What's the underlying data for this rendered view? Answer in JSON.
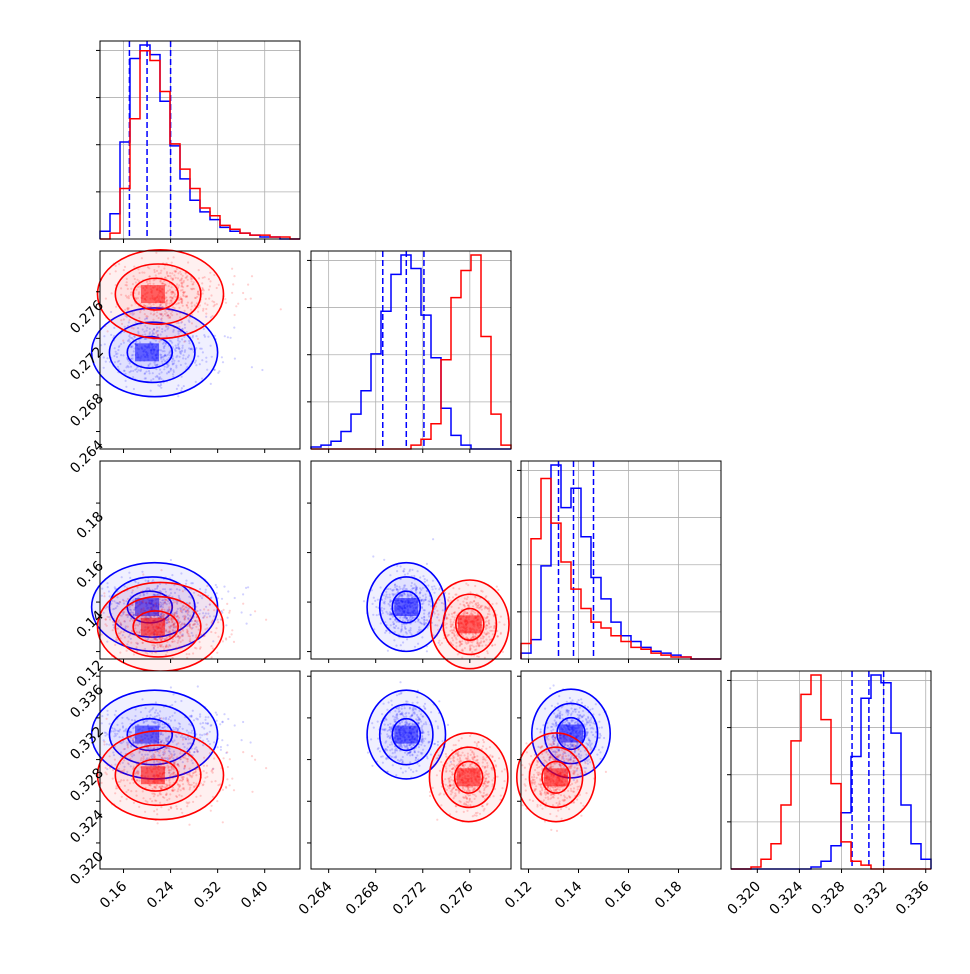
{
  "chart_data": {
    "type": "corner",
    "grid": true,
    "colors": {
      "series_a": "#0000ff",
      "series_b": "#ff0000",
      "grid": "#b0b0b0"
    },
    "parameters": [
      {
        "range": [
          0.12,
          0.46
        ],
        "ticks": [
          0.16,
          0.24,
          0.32,
          0.4
        ],
        "tick_labels": [
          "0.16",
          "0.24",
          "0.32",
          "0.40"
        ]
      },
      {
        "range": [
          0.2625,
          0.2795
        ],
        "ticks": [
          0.264,
          0.268,
          0.272,
          0.276
        ],
        "tick_labels": [
          "0.264",
          "0.268",
          "0.272",
          "0.276"
        ]
      },
      {
        "range": [
          0.117,
          0.197
        ],
        "ticks": [
          0.12,
          0.14,
          0.16,
          0.18
        ],
        "tick_labels": [
          "0.12",
          "0.14",
          "0.16",
          "0.18"
        ]
      },
      {
        "range": [
          0.3175,
          0.3365
        ],
        "ticks": [
          0.32,
          0.324,
          0.328,
          0.332,
          0.336
        ],
        "tick_labels": [
          "0.320",
          "0.324",
          "0.328",
          "0.332",
          "0.336"
        ]
      }
    ],
    "series": [
      {
        "color": "series_a",
        "quantiles": [
          [
            0.17,
            0.2,
            0.24
          ],
          [
            0.2686,
            0.2706,
            0.2721
          ],
          [
            0.132,
            0.138,
            0.146
          ],
          [
            0.329,
            0.3306,
            0.332
          ]
        ],
        "histograms": [
          [
            0.04,
            0.13,
            0.5,
            0.93,
            1.0,
            0.95,
            0.71,
            0.48,
            0.31,
            0.2,
            0.14,
            0.1,
            0.06,
            0.04,
            0.03,
            0.02,
            0.01,
            0.01,
            0.0,
            0.0
          ],
          [
            0.01,
            0.02,
            0.04,
            0.09,
            0.18,
            0.3,
            0.49,
            0.71,
            0.9,
            1.0,
            0.93,
            0.69,
            0.47,
            0.21,
            0.07,
            0.02,
            0.0,
            0.0,
            0.0,
            0.0
          ],
          [
            0.03,
            0.1,
            0.48,
            1.0,
            0.78,
            0.88,
            0.63,
            0.42,
            0.31,
            0.19,
            0.12,
            0.09,
            0.06,
            0.04,
            0.03,
            0.02,
            0.01,
            0.0,
            0.0,
            0.0
          ],
          [
            0.0,
            0.0,
            0.0,
            0.0,
            0.0,
            0.0,
            0.0,
            0.0,
            0.01,
            0.04,
            0.12,
            0.29,
            0.58,
            0.88,
            1.0,
            0.96,
            0.7,
            0.33,
            0.13,
            0.05
          ]
        ],
        "centers": [
          [
            0.2,
            0.2708
          ],
          [
            0.2,
            0.138
          ],
          [
            0.2706,
            0.138
          ],
          [
            0.2,
            0.3304
          ],
          [
            0.2706,
            0.3304
          ],
          [
            0.137,
            0.3305
          ]
        ]
      },
      {
        "color": "series_b",
        "quantiles": [],
        "histograms": [
          [
            0.0,
            0.03,
            0.26,
            0.62,
            0.97,
            0.92,
            0.76,
            0.49,
            0.36,
            0.26,
            0.16,
            0.12,
            0.07,
            0.05,
            0.03,
            0.02,
            0.02,
            0.01,
            0.01,
            0.0
          ],
          [
            0.0,
            0.0,
            0.0,
            0.0,
            0.0,
            0.0,
            0.0,
            0.0,
            0.0,
            0.0,
            0.02,
            0.05,
            0.13,
            0.46,
            0.78,
            0.92,
            1.0,
            0.58,
            0.18,
            0.02
          ],
          [
            0.08,
            0.62,
            0.93,
            0.7,
            0.5,
            0.36,
            0.26,
            0.19,
            0.16,
            0.12,
            0.09,
            0.06,
            0.05,
            0.03,
            0.02,
            0.01,
            0.01,
            0.0,
            0.0,
            0.0
          ],
          [
            0.0,
            0.0,
            0.01,
            0.05,
            0.13,
            0.33,
            0.66,
            0.9,
            1.0,
            0.77,
            0.44,
            0.14,
            0.04,
            0.02,
            0.0,
            0.0,
            0.0,
            0.0,
            0.0,
            0.0
          ]
        ],
        "centers": [
          [
            0.21,
            0.2758
          ],
          [
            0.21,
            0.13
          ],
          [
            0.276,
            0.131
          ],
          [
            0.21,
            0.3265
          ],
          [
            0.2759,
            0.3263
          ],
          [
            0.131,
            0.3263
          ]
        ]
      }
    ]
  }
}
